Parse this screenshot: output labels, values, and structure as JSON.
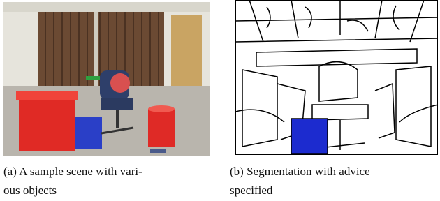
{
  "figures": [
    {
      "caption_lines": [
        "(a) A sample scene with vari-",
        "ous objects"
      ]
    },
    {
      "caption_lines": [
        "(b) Segmentation with advice",
        "specified"
      ]
    }
  ]
}
